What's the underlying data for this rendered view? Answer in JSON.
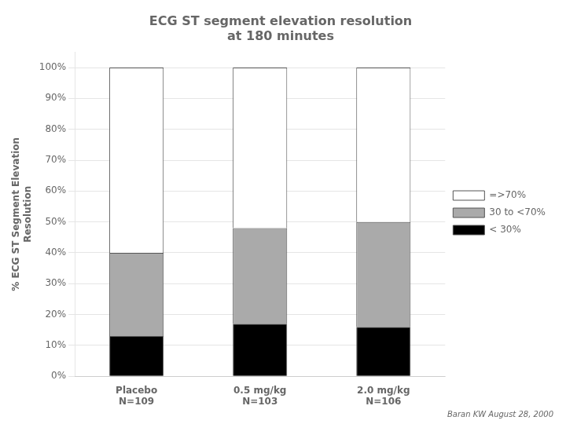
{
  "chart_data": {
    "type": "bar",
    "stacked": true,
    "title": "ECG ST segment elevation resolution\nat 180 minutes",
    "ylabel": "% ECG ST Segment Elevation\nResolution",
    "categories": [
      "Placebo\nN=109",
      "0.5 mg/kg\nN=103",
      "2.0 mg/kg\nN=106"
    ],
    "series": [
      {
        "name": "< 30%",
        "color": "#000000",
        "values": [
          13,
          17,
          16
        ]
      },
      {
        "name": "30 to <70%",
        "color": "#aaaaaa",
        "values": [
          27,
          31,
          34
        ]
      },
      {
        "name": "=>70%",
        "color": "#ffffff",
        "values": [
          60,
          52,
          50
        ]
      }
    ],
    "ylim": [
      0,
      105
    ],
    "yticks": [
      {
        "value": 0,
        "label": "0%"
      },
      {
        "value": 10,
        "label": "10%"
      },
      {
        "value": 20,
        "label": "20%"
      },
      {
        "value": 30,
        "label": "30%"
      },
      {
        "value": 40,
        "label": "40%"
      },
      {
        "value": 50,
        "label": "50%"
      },
      {
        "value": 60,
        "label": "60%"
      },
      {
        "value": 70,
        "label": "70%"
      },
      {
        "value": 80,
        "label": "80%"
      },
      {
        "value": 90,
        "label": "90%"
      },
      {
        "value": 100,
        "label": "100%"
      }
    ],
    "grid": "y",
    "legend": "right",
    "annotations": [
      "Baran KW August 28, 2000"
    ]
  }
}
